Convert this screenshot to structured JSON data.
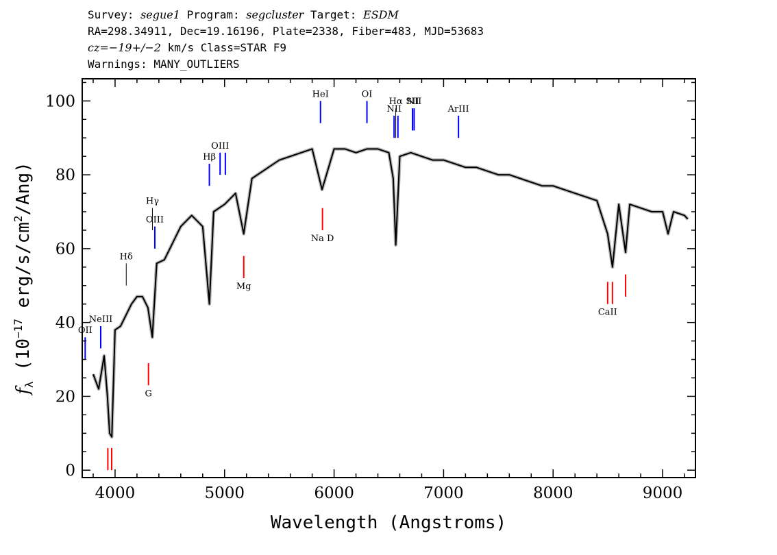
{
  "header": {
    "line1": {
      "survey_label": "Survey: ",
      "survey": "segue1",
      "program_label": " Program: ",
      "program": "segcluster",
      "target_label": " Target: ",
      "target": "ESDM"
    },
    "line2": "RA=298.34911, Dec=19.16196, Plate=2338, Fiber=483, MJD=53683",
    "line3": {
      "cz": "cz=−19+/−2",
      "rest": " km/s Class=STAR F9"
    },
    "line4": "Warnings: MANY_OUTLIERS"
  },
  "colors": {
    "spectrum": "#000000",
    "error_band": "#b8b8b8",
    "emission": "#0000ff",
    "absorption": "#ff0000",
    "axes": "#000000"
  },
  "chart_data": {
    "type": "line",
    "xlabel": "Wavelength (Angstroms)",
    "ylabel": "f_λ (10^-17 erg/s/cm^2/Ang)",
    "ylabel_parts": {
      "f": "f",
      "sub": "λ",
      "a": " (10",
      "exp1": "−17",
      "b": " erg/s/cm",
      "exp2": "2",
      "c": "/Ang)"
    },
    "xlim": [
      3700,
      9300
    ],
    "ylim": [
      -2,
      106
    ],
    "xticks": [
      4000,
      5000,
      6000,
      7000,
      8000,
      9000
    ],
    "yticks": [
      0,
      20,
      40,
      60,
      80,
      100
    ],
    "grid": false,
    "series": [
      {
        "x": [
          3800,
          3850,
          3900,
          3930,
          3950,
          3970,
          4000,
          4050,
          4100,
          4150,
          4200,
          4250,
          4300,
          4340,
          4380,
          4450,
          4500,
          4600,
          4700,
          4800,
          4861,
          4900,
          5000,
          5100,
          5175,
          5250,
          5300,
          5400,
          5500,
          5600,
          5700,
          5800,
          5890,
          6000,
          6100,
          6200,
          6300,
          6400,
          6500,
          6540,
          6563,
          6600,
          6700,
          6800,
          6900,
          7000,
          7100,
          7200,
          7300,
          7400,
          7500,
          7600,
          7700,
          7800,
          7900,
          8000,
          8100,
          8200,
          8300,
          8400,
          8498,
          8542,
          8600,
          8662,
          8700,
          8800,
          8900,
          9000,
          9050,
          9100,
          9200,
          9230
        ],
        "y": [
          26,
          22,
          31,
          20,
          10,
          9,
          38,
          39,
          42,
          45,
          47,
          47,
          44,
          36,
          56,
          57,
          60,
          66,
          69,
          66,
          45,
          70,
          72,
          75,
          64,
          79,
          80,
          82,
          84,
          85,
          86,
          87,
          76,
          87,
          87,
          86,
          87,
          87,
          86,
          79,
          61,
          85,
          86,
          85,
          84,
          84,
          83,
          82,
          82,
          81,
          80,
          80,
          79,
          78,
          77,
          77,
          76,
          75,
          74,
          73,
          64,
          55,
          72,
          59,
          72,
          71,
          70,
          70,
          64,
          70,
          69,
          68
        ]
      }
    ],
    "lines": [
      {
        "label": "OII",
        "x": 3727,
        "kind": "emission",
        "y0": 30,
        "y1": 36
      },
      {
        "label": "NeIII",
        "x": 3869,
        "kind": "emission",
        "y0": 33,
        "y1": 39
      },
      {
        "label": "Hδ",
        "x": 4102,
        "kind": "emission",
        "y0": 50,
        "y1": 56,
        "thin": true
      },
      {
        "label": "Hγ",
        "x": 4341,
        "kind": "emission",
        "y0": 65,
        "y1": 71,
        "thin": true
      },
      {
        "label": "OIII",
        "x": 4363,
        "kind": "emission",
        "y0": 60,
        "y1": 66
      },
      {
        "label": "Hβ",
        "x": 4861,
        "kind": "emission",
        "y0": 77,
        "y1": 83
      },
      {
        "label": "OIII",
        "x": 4959,
        "kind": "emission",
        "y0": 80,
        "y1": 86
      },
      {
        "label": "",
        "x": 5007,
        "kind": "emission",
        "y0": 80,
        "y1": 86
      },
      {
        "label": "HeI",
        "x": 5876,
        "kind": "emission",
        "y0": 94,
        "y1": 100
      },
      {
        "label": "OI",
        "x": 6300,
        "kind": "emission",
        "y0": 94,
        "y1": 100
      },
      {
        "label": "NII",
        "x": 6548,
        "kind": "emission",
        "y0": 90,
        "y1": 96
      },
      {
        "label": "Hα",
        "x": 6563,
        "kind": "emission",
        "y0": 90,
        "y1": 98,
        "thin": true
      },
      {
        "label": "",
        "x": 6583,
        "kind": "emission",
        "y0": 90,
        "y1": 96
      },
      {
        "label": "SII",
        "x": 6716,
        "kind": "emission",
        "y0": 92,
        "y1": 98
      },
      {
        "label": "NII",
        "x": 6731,
        "kind": "emission",
        "y0": 92,
        "y1": 98
      },
      {
        "label": "ArIII",
        "x": 7136,
        "kind": "emission",
        "y0": 90,
        "y1": 96
      },
      {
        "label": "",
        "x": 3934,
        "kind": "absorption",
        "y0": 0,
        "y1": 6
      },
      {
        "label": "",
        "x": 3969,
        "kind": "absorption",
        "y0": 0,
        "y1": 6
      },
      {
        "label": "G",
        "x": 4305,
        "kind": "absorption",
        "y0": 23,
        "y1": 29
      },
      {
        "label": "Mg",
        "x": 5175,
        "kind": "absorption",
        "y0": 52,
        "y1": 58
      },
      {
        "label": "Na  D",
        "x": 5894,
        "kind": "absorption",
        "y0": 65,
        "y1": 71
      },
      {
        "label": "CaII",
        "x": 8498,
        "kind": "absorption",
        "y0": 45,
        "y1": 51
      },
      {
        "label": "",
        "x": 8542,
        "kind": "absorption",
        "y0": 45,
        "y1": 51
      },
      {
        "label": "",
        "x": 8662,
        "kind": "absorption",
        "y0": 47,
        "y1": 53
      }
    ]
  }
}
